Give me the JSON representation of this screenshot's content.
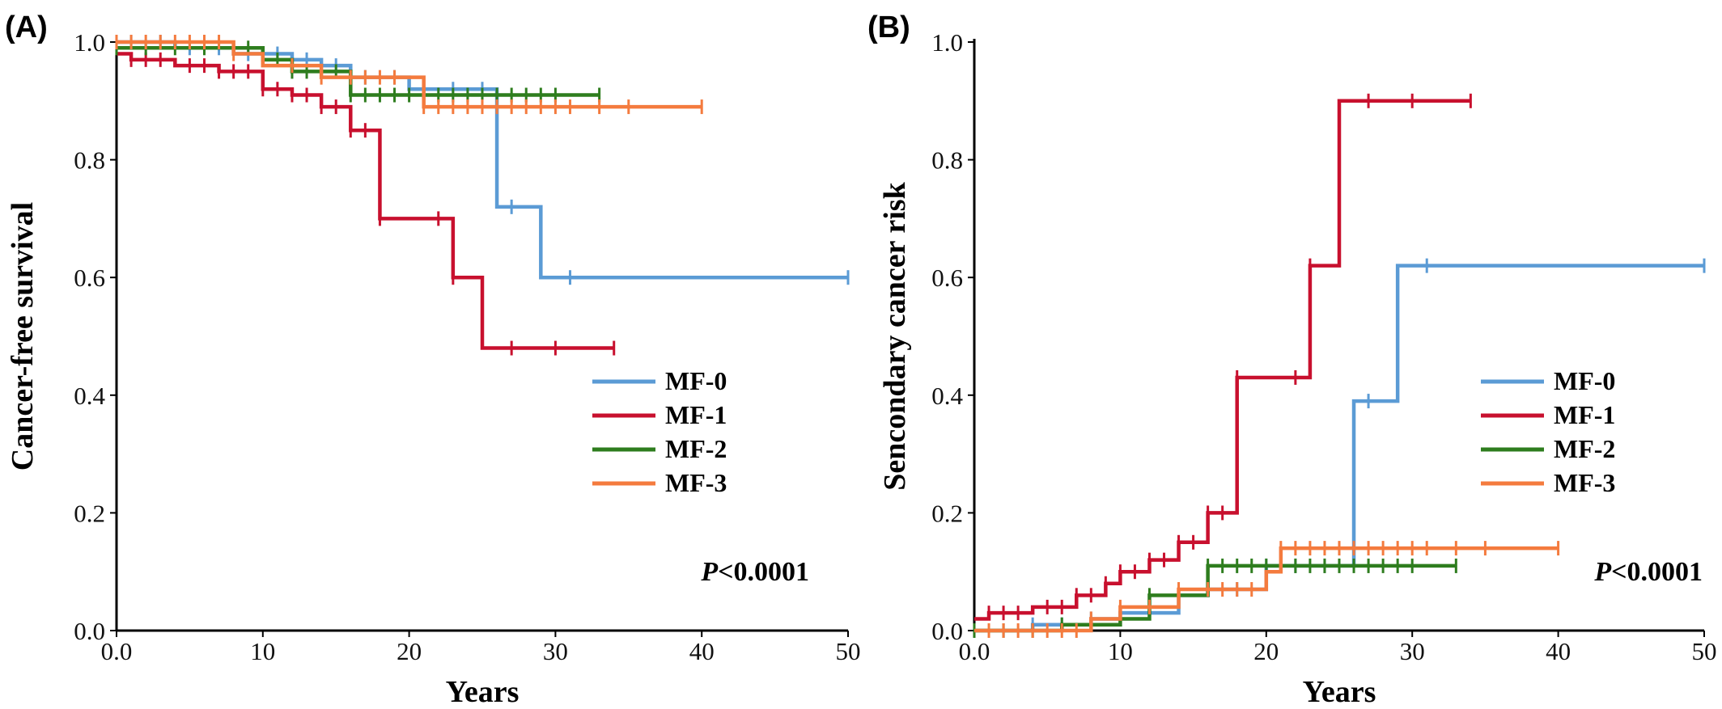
{
  "chart_data": [
    {
      "panel_label": "(A)",
      "type": "line",
      "step": true,
      "xlabel": "Years",
      "ylabel": "Cancer-free survival",
      "xlim": [
        0,
        50
      ],
      "ylim": [
        0,
        1.0
      ],
      "xticks": [
        "0.0",
        "10",
        "20",
        "30",
        "40",
        "50"
      ],
      "yticks": [
        "0.0",
        "0.2",
        "0.4",
        "0.6",
        "0.8",
        "1.0"
      ],
      "legend_position": "right-middle",
      "annotation": {
        "italic": "P",
        "rest": "<0.0001"
      },
      "grid": false,
      "series": [
        {
          "name": "MF-0",
          "color": "#5b9bd5",
          "points": [
            [
              0,
              1.0
            ],
            [
              4,
              0.99
            ],
            [
              8,
              0.98
            ],
            [
              12,
              0.97
            ],
            [
              14,
              0.96
            ],
            [
              16,
              0.94
            ],
            [
              20,
              0.92
            ],
            [
              26,
              0.72
            ],
            [
              29,
              0.6
            ],
            [
              50,
              0.6
            ]
          ],
          "censor": [
            1,
            3,
            5,
            7,
            9,
            11,
            13,
            15,
            17,
            19,
            21,
            23,
            25,
            27,
            31,
            50
          ]
        },
        {
          "name": "MF-1",
          "color": "#c8102e",
          "points": [
            [
              0,
              0.98
            ],
            [
              1,
              0.97
            ],
            [
              4,
              0.96
            ],
            [
              7,
              0.95
            ],
            [
              10,
              0.92
            ],
            [
              12,
              0.91
            ],
            [
              14,
              0.89
            ],
            [
              16,
              0.85
            ],
            [
              18,
              0.7
            ],
            [
              23,
              0.6
            ],
            [
              25,
              0.48
            ],
            [
              34,
              0.48
            ]
          ],
          "censor": [
            1,
            2,
            3,
            5,
            6,
            7,
            8,
            9,
            10,
            11,
            12,
            13,
            14,
            15,
            16,
            17,
            18,
            22,
            23,
            27,
            30,
            34
          ]
        },
        {
          "name": "MF-2",
          "color": "#2e7d1e",
          "points": [
            [
              0,
              0.99
            ],
            [
              6,
              0.99
            ],
            [
              10,
              0.97
            ],
            [
              12,
              0.95
            ],
            [
              16,
              0.91
            ],
            [
              33,
              0.91
            ]
          ],
          "censor": [
            0,
            2,
            4,
            6,
            8,
            9,
            10,
            11,
            12,
            13,
            14,
            15,
            16,
            17,
            18,
            19,
            20,
            21,
            22,
            23,
            24,
            25,
            26,
            27,
            28,
            29,
            30,
            33
          ]
        },
        {
          "name": "MF-3",
          "color": "#f47b3e",
          "points": [
            [
              0,
              1.0
            ],
            [
              8,
              0.98
            ],
            [
              10,
              0.96
            ],
            [
              14,
              0.94
            ],
            [
              21,
              0.89
            ],
            [
              40,
              0.89
            ]
          ],
          "censor": [
            0,
            1,
            2,
            3,
            4,
            5,
            6,
            7,
            8,
            12,
            14,
            16,
            17,
            18,
            19,
            21,
            22,
            23,
            24,
            25,
            26,
            27,
            28,
            29,
            30,
            31,
            33,
            35,
            40
          ]
        }
      ]
    },
    {
      "panel_label": "(B)",
      "type": "line",
      "step": true,
      "xlabel": "Years",
      "ylabel": "Sencondary cancer risk",
      "xlim": [
        0,
        50
      ],
      "ylim": [
        0,
        1.0
      ],
      "xticks": [
        "0.0",
        "10",
        "20",
        "30",
        "40",
        "50"
      ],
      "yticks": [
        "0.0",
        "0.2",
        "0.4",
        "0.6",
        "0.8",
        "1.0"
      ],
      "legend_position": "right-middle",
      "annotation": {
        "italic": "P",
        "rest": "<0.0001"
      },
      "grid": false,
      "series": [
        {
          "name": "MF-0",
          "color": "#5b9bd5",
          "points": [
            [
              0,
              0.0
            ],
            [
              4,
              0.01
            ],
            [
              8,
              0.02
            ],
            [
              10,
              0.03
            ],
            [
              14,
              0.06
            ],
            [
              16,
              0.07
            ],
            [
              20,
              0.11
            ],
            [
              26,
              0.39
            ],
            [
              29,
              0.62
            ],
            [
              50,
              0.62
            ]
          ],
          "censor": [
            2,
            4,
            6,
            8,
            10,
            12,
            14,
            16,
            18,
            20,
            22,
            24,
            27,
            31,
            50
          ]
        },
        {
          "name": "MF-1",
          "color": "#c8102e",
          "points": [
            [
              0,
              0.02
            ],
            [
              1,
              0.03
            ],
            [
              4,
              0.04
            ],
            [
              7,
              0.06
            ],
            [
              9,
              0.08
            ],
            [
              10,
              0.1
            ],
            [
              12,
              0.12
            ],
            [
              14,
              0.15
            ],
            [
              16,
              0.2
            ],
            [
              18,
              0.43
            ],
            [
              23,
              0.62
            ],
            [
              25,
              0.9
            ],
            [
              34,
              0.9
            ]
          ],
          "censor": [
            1,
            2,
            3,
            5,
            6,
            7,
            8,
            9,
            10,
            11,
            12,
            13,
            14,
            15,
            16,
            17,
            18,
            22,
            23,
            27,
            30,
            34
          ]
        },
        {
          "name": "MF-2",
          "color": "#2e7d1e",
          "points": [
            [
              0,
              0.0
            ],
            [
              6,
              0.01
            ],
            [
              10,
              0.02
            ],
            [
              12,
              0.06
            ],
            [
              16,
              0.11
            ],
            [
              33,
              0.11
            ]
          ],
          "censor": [
            0,
            2,
            4,
            6,
            8,
            10,
            12,
            14,
            16,
            17,
            18,
            19,
            20,
            21,
            22,
            23,
            24,
            25,
            26,
            27,
            28,
            29,
            30,
            33
          ]
        },
        {
          "name": "MF-3",
          "color": "#f47b3e",
          "points": [
            [
              0,
              0.0
            ],
            [
              6,
              0.0
            ],
            [
              8,
              0.02
            ],
            [
              10,
              0.04
            ],
            [
              14,
              0.07
            ],
            [
              20,
              0.1
            ],
            [
              21,
              0.14
            ],
            [
              40,
              0.14
            ]
          ],
          "censor": [
            1,
            2,
            3,
            4,
            5,
            6,
            7,
            8,
            10,
            12,
            14,
            16,
            17,
            18,
            19,
            21,
            22,
            23,
            24,
            25,
            26,
            27,
            28,
            29,
            30,
            31,
            33,
            35,
            40
          ]
        }
      ]
    }
  ]
}
